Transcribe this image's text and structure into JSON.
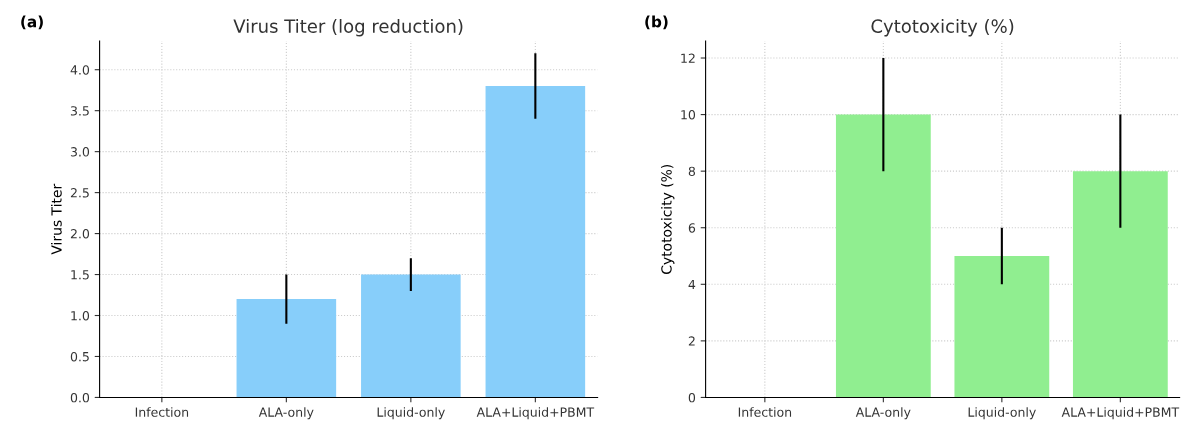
{
  "chart_data": [
    {
      "type": "bar",
      "title": "Virus Titer (log reduction)",
      "ylabel": "Virus Titer",
      "annotations": [
        "(a)"
      ],
      "categories": [
        "Infection",
        "ALA-only",
        "Liquid-only",
        "ALA+Liquid+PBMT"
      ],
      "values": [
        0,
        1.2,
        1.5,
        3.8
      ],
      "errors": [
        null,
        0.3,
        0.2,
        0.4
      ],
      "color": "#87cefa",
      "ylim": [
        0,
        4.35
      ],
      "yticks": [
        {
          "value": 0,
          "label": "0.0"
        },
        0.5,
        {
          "value": 1,
          "label": "1.0"
        },
        1.5,
        {
          "value": 2,
          "label": "2.0"
        },
        2.5,
        {
          "value": 3,
          "label": "3.0"
        },
        3.5,
        {
          "value": 4,
          "label": "4.0"
        }
      ],
      "grid": true
    },
    {
      "type": "bar",
      "title": "Cytotoxicity (%)",
      "ylabel": "Cytotoxicity (%)",
      "annotations": [
        "(b)"
      ],
      "categories": [
        "Infection",
        "ALA-only",
        "Liquid-only",
        "ALA+Liquid+PBMT"
      ],
      "values": [
        0,
        10,
        5,
        8
      ],
      "errors": [
        null,
        2,
        1,
        2
      ],
      "color": "#90ee90",
      "ylim": [
        0,
        12.6
      ],
      "yticks": [
        0,
        2,
        4,
        6,
        8,
        10,
        12
      ],
      "grid": true
    }
  ]
}
